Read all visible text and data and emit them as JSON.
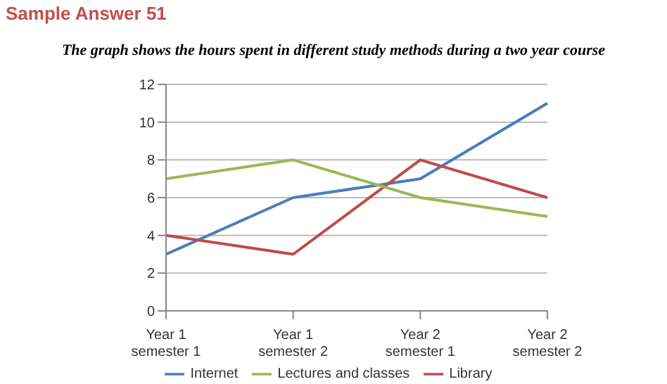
{
  "chart_data": {
    "type": "line",
    "title": "Sample Answer 51",
    "subtitle": "The graph shows the hours spent in different study methods during a two year course",
    "categories": [
      "Year 1 semester 1",
      "Year 1 semester 2",
      "Year 2 semester 1",
      "Year 2 semester 2"
    ],
    "series": [
      {
        "name": "Internet",
        "color": "#4a7ebb",
        "values": [
          3,
          6,
          7,
          11
        ]
      },
      {
        "name": "Library",
        "color": "#be4b48",
        "values": [
          4,
          3,
          8,
          6
        ]
      },
      {
        "name": "Lectures and classes",
        "color": "#98b954",
        "values": [
          7,
          8,
          6,
          5
        ]
      }
    ],
    "ylim": [
      0,
      12
    ],
    "yticks": [
      0,
      2,
      4,
      6,
      8,
      10,
      12
    ],
    "grid": "y",
    "legend": "bottom",
    "marker": "none",
    "line_style": "solid"
  }
}
